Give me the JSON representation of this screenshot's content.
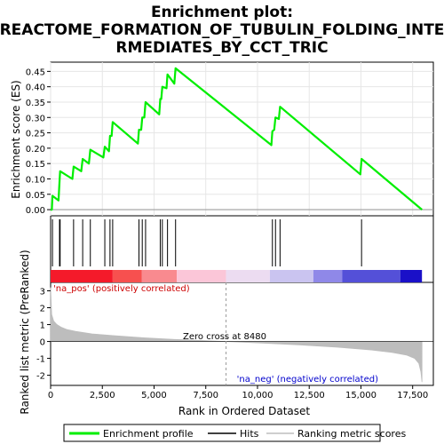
{
  "chart_data": {
    "type": "line",
    "title": "Enrichment plot: REACTOME_FORMATION_OF_TUBULIN_FOLDING_INTERMEDIATES_BY_CCT_TRIC",
    "title_lines": [
      "Enrichment plot:",
      "REACTOME_FORMATION_OF_TUBULIN_FOLDING_INTE",
      "RMEDIATES_BY_CCT_TRIC"
    ],
    "x_range": [
      0,
      18500
    ],
    "x_ticks": [
      0,
      2500,
      5000,
      7500,
      10000,
      12500,
      15000,
      17500
    ],
    "x_tick_labels": [
      "0",
      "2,500",
      "5,000",
      "7,500",
      "10,000",
      "12,500",
      "15,000",
      "17,500"
    ],
    "xlabel": "Rank in Ordered Dataset",
    "es_panel": {
      "ylabel": "Enrichment score (ES)",
      "ylim": [
        -0.02,
        0.48
      ],
      "y_ticks": [
        0.0,
        0.05,
        0.1,
        0.15,
        0.2,
        0.25,
        0.3,
        0.35,
        0.4,
        0.45
      ],
      "y_tick_labels": [
        "0.00",
        "0.05",
        "0.10",
        "0.15",
        "0.20",
        "0.25",
        "0.30",
        "0.35",
        "0.40",
        "0.45"
      ],
      "series": [
        {
          "name": "Enrichment profile",
          "color": "#00ee00",
          "x": [
            0,
            60,
            90,
            380,
            430,
            460,
            1050,
            1110,
            1480,
            1550,
            1850,
            1920,
            2550,
            2620,
            2820,
            2870,
            2950,
            3000,
            4220,
            4270,
            4380,
            4430,
            4530,
            4590,
            5250,
            5300,
            5350,
            5400,
            5600,
            5650,
            5980,
            6040,
            10670,
            10720,
            10810,
            10870,
            11030,
            11090,
            14970,
            15030,
            17950
          ],
          "y": [
            0.0,
            0.0,
            0.045,
            0.03,
            0.09,
            0.125,
            0.1,
            0.14,
            0.125,
            0.165,
            0.15,
            0.195,
            0.17,
            0.205,
            0.19,
            0.24,
            0.24,
            0.285,
            0.215,
            0.26,
            0.26,
            0.3,
            0.3,
            0.35,
            0.31,
            0.36,
            0.36,
            0.4,
            0.395,
            0.44,
            0.41,
            0.46,
            0.21,
            0.255,
            0.26,
            0.3,
            0.295,
            0.335,
            0.115,
            0.165,
            0.0
          ]
        }
      ]
    },
    "hits": {
      "name": "Hits",
      "color": "#000000",
      "x": [
        90,
        430,
        460,
        1110,
        1550,
        1920,
        2620,
        2870,
        3000,
        4270,
        4430,
        4590,
        5300,
        5400,
        5650,
        6040,
        10720,
        10870,
        11090,
        15030
      ]
    },
    "rank_metric": {
      "name": "Ranking metric scores",
      "color": "#bdbdbd",
      "ylabel": "Ranked list metric (PreRanked)",
      "ylim": [
        -2.6,
        3.5
      ],
      "y_ticks": [
        -2,
        -1,
        0,
        1,
        2,
        3
      ],
      "y_tick_labels": [
        "-2",
        "-1",
        "0",
        "1",
        "2",
        "3"
      ],
      "x": [
        0,
        50,
        150,
        300,
        500,
        800,
        1200,
        2000,
        3000,
        4500,
        6000,
        7500,
        8480,
        10000,
        12000,
        14000,
        15500,
        16500,
        17200,
        17600,
        17800,
        17900,
        17950
      ],
      "y": [
        3.2,
        1.6,
        1.2,
        1.0,
        0.85,
        0.7,
        0.6,
        0.45,
        0.35,
        0.22,
        0.12,
        0.05,
        0.0,
        -0.08,
        -0.2,
        -0.35,
        -0.5,
        -0.65,
        -0.8,
        -1.0,
        -1.3,
        -1.8,
        -2.4
      ],
      "zero_cross_label": "Zero cross at 8480",
      "zero_cross": 8480,
      "pos_label": "'na_pos' (positively correlated)",
      "neg_label": "'na_neg' (negatively correlated)"
    },
    "gradient_bar": {
      "segments": [
        {
          "from": 0,
          "to": 3000,
          "color": "#f41a2a"
        },
        {
          "from": 3000,
          "to": 4400,
          "color": "#f7504f"
        },
        {
          "from": 4400,
          "to": 6100,
          "color": "#f98a8f"
        },
        {
          "from": 6100,
          "to": 8480,
          "color": "#fbc6d8"
        },
        {
          "from": 8480,
          "to": 10600,
          "color": "#ecdcf1"
        },
        {
          "from": 10600,
          "to": 12700,
          "color": "#cac4f0"
        },
        {
          "from": 12700,
          "to": 14100,
          "color": "#8f88e8"
        },
        {
          "from": 14100,
          "to": 16900,
          "color": "#5450d8"
        },
        {
          "from": 16900,
          "to": 17950,
          "color": "#1a10c8"
        }
      ]
    },
    "legend": {
      "placement": "bottom",
      "items": [
        {
          "label": "Enrichment profile",
          "color": "#00ee00"
        },
        {
          "label": "Hits",
          "color": "#000000"
        },
        {
          "label": "Ranking metric scores",
          "color": "#bdbdbd"
        }
      ]
    }
  }
}
